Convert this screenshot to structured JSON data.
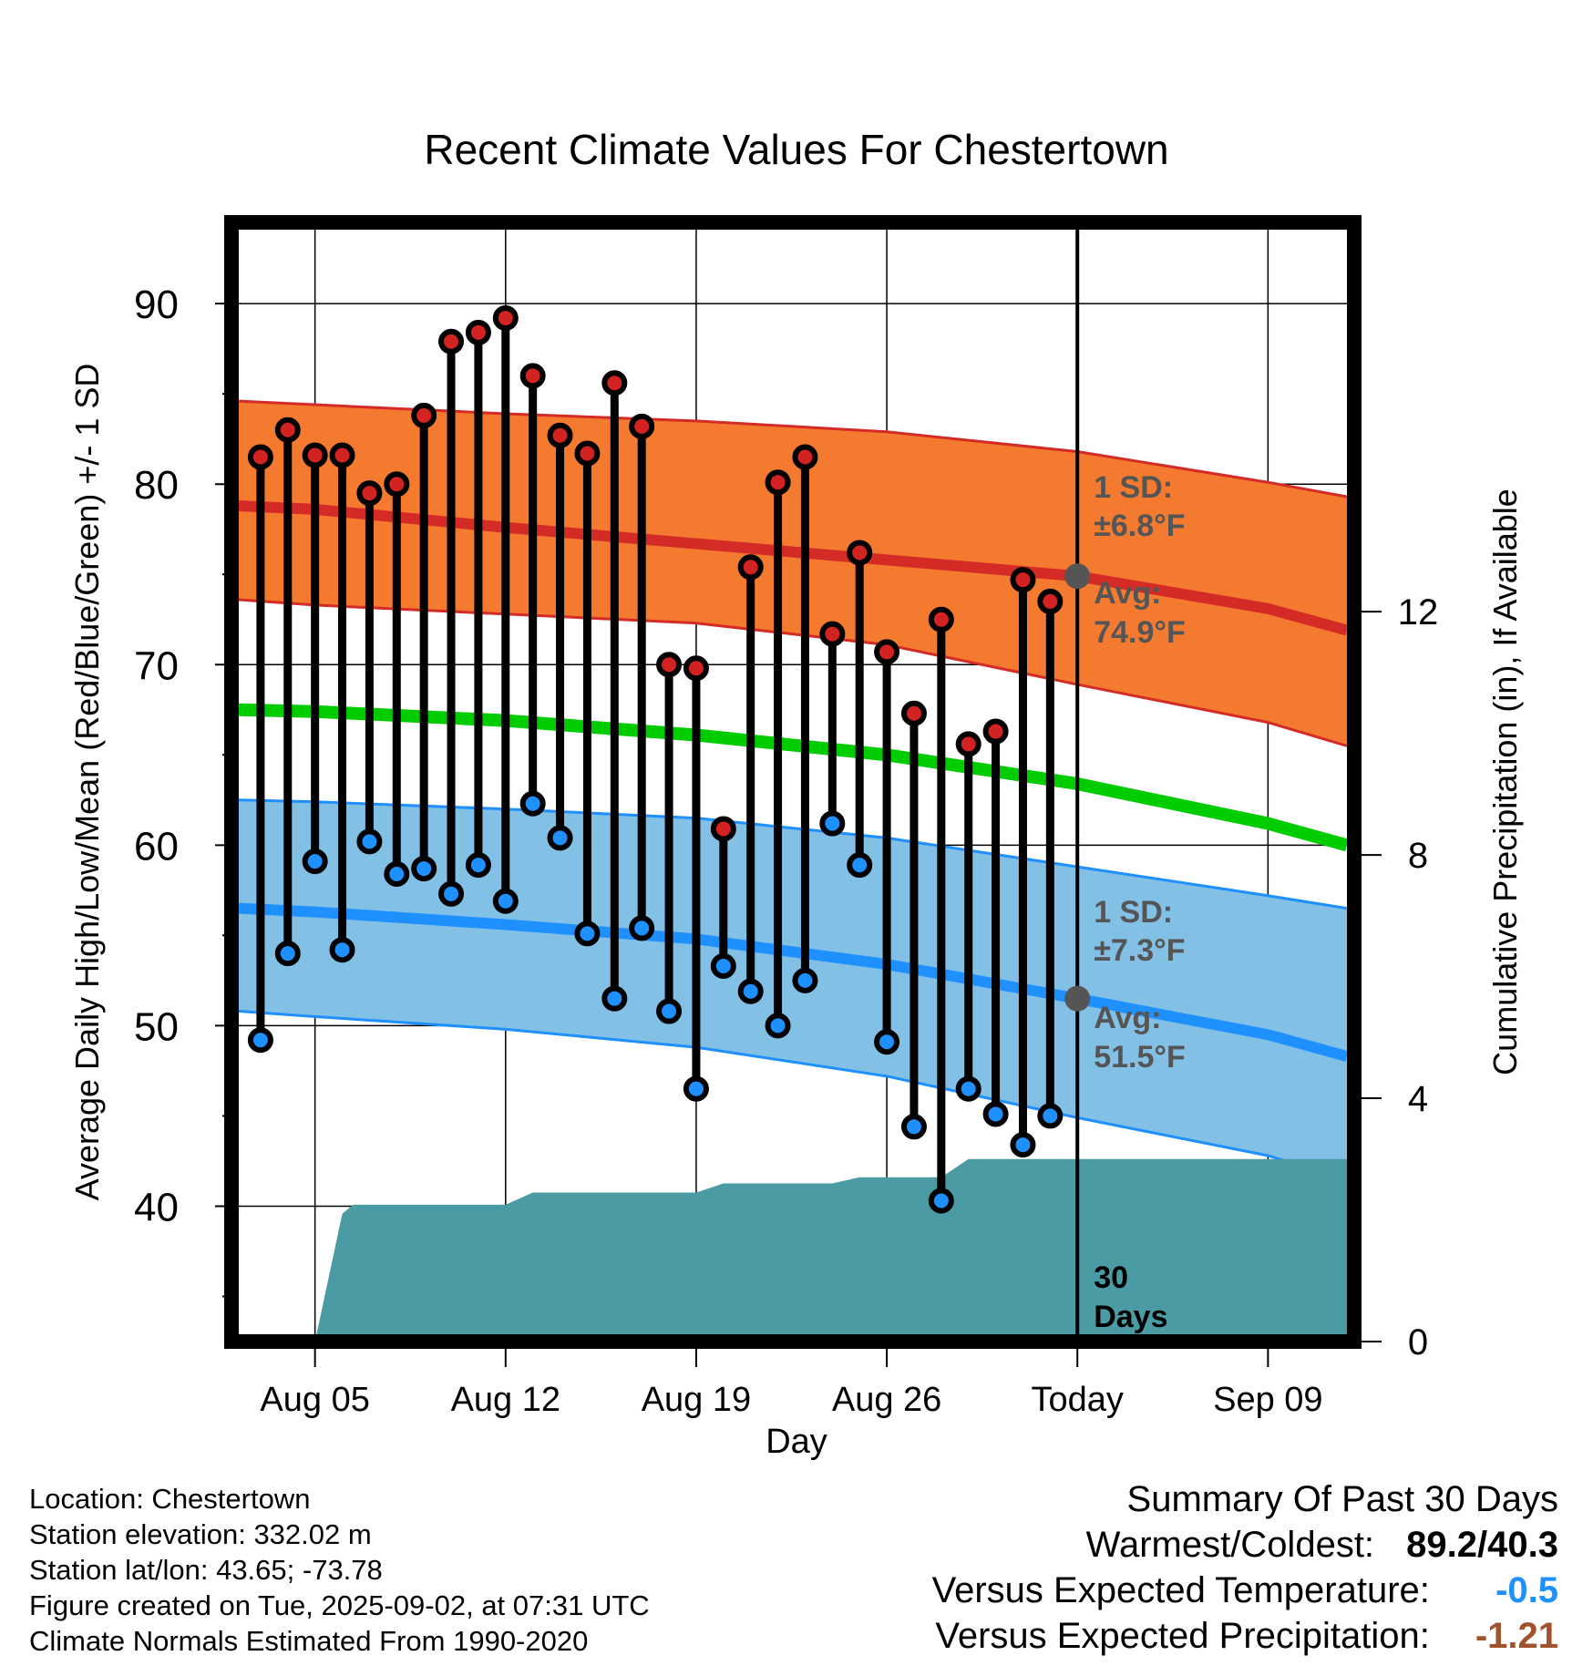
{
  "chart_data": {
    "type": "line",
    "title": "Recent Climate Values For Chestertown",
    "xlabel": "Day",
    "ylabel": "Average Daily High/Low/Mean (Red/Blue/Green) +/- 1 SD",
    "y2label": "Cumulative Precipitation (in), If Available",
    "ylim": [
      32.5,
      94.5
    ],
    "y2lim": [
      0,
      18.4
    ],
    "yticks": [
      40,
      50,
      60,
      70,
      80,
      90
    ],
    "y2ticks": [
      0,
      4,
      8,
      12
    ],
    "xticks": [
      {
        "day": 5,
        "label": "Aug 05"
      },
      {
        "day": 12,
        "label": "Aug 12"
      },
      {
        "day": 19,
        "label": "Aug 19"
      },
      {
        "day": 26,
        "label": "Aug 26"
      },
      {
        "day": 33,
        "label": "Today"
      },
      {
        "day": 40,
        "label": "Sep 09"
      }
    ],
    "xlim": [
      2.2,
      42.9
    ],
    "grid": true,
    "today_day": 33,
    "daily": {
      "day": [
        3,
        4,
        5,
        6,
        7,
        8,
        9,
        10,
        11,
        12,
        13,
        14,
        15,
        16,
        17,
        18,
        19,
        20,
        21,
        22,
        23,
        24,
        25,
        26,
        27,
        28,
        29,
        30,
        31,
        32
      ],
      "high": [
        81.5,
        83.0,
        81.6,
        81.6,
        79.5,
        80.0,
        83.8,
        87.9,
        88.4,
        89.2,
        86.0,
        82.7,
        81.7,
        85.6,
        83.2,
        70.0,
        69.8,
        60.9,
        75.4,
        80.1,
        81.5,
        71.7,
        76.2,
        70.7,
        67.3,
        72.5,
        65.6,
        66.3,
        74.7,
        73.5
      ],
      "low": [
        49.2,
        54.0,
        59.1,
        54.2,
        60.2,
        58.4,
        58.7,
        57.3,
        58.9,
        56.9,
        62.3,
        60.4,
        55.1,
        51.5,
        55.4,
        50.8,
        46.5,
        53.3,
        51.9,
        50.0,
        52.5,
        61.2,
        58.9,
        49.1,
        44.4,
        40.3,
        46.5,
        45.1,
        43.4,
        45.0
      ]
    },
    "normals": {
      "day": [
        2.2,
        5,
        12,
        19,
        26,
        33,
        40,
        42.9
      ],
      "avg_high": [
        78.8,
        78.6,
        77.6,
        76.7,
        75.8,
        74.9,
        73.1,
        71.9
      ],
      "high_upper": [
        84.6,
        84.4,
        83.9,
        83.5,
        82.9,
        81.8,
        80.1,
        79.3
      ],
      "high_lower": [
        73.6,
        73.3,
        72.8,
        72.3,
        71.1,
        68.9,
        66.8,
        65.5
      ],
      "avg_mean": [
        67.5,
        67.4,
        66.9,
        66.1,
        65.0,
        63.4,
        61.2,
        60.0
      ],
      "avg_low": [
        56.5,
        56.3,
        55.6,
        54.8,
        53.4,
        51.5,
        49.5,
        48.3
      ],
      "low_upper": [
        62.5,
        62.4,
        62.0,
        61.5,
        60.4,
        58.8,
        57.2,
        56.5
      ],
      "low_lower": [
        50.8,
        50.5,
        49.8,
        48.8,
        47.2,
        44.9,
        42.8,
        41.5
      ]
    },
    "precip": {
      "day": [
        5,
        6,
        6.4,
        7,
        12,
        13,
        19,
        20,
        24,
        25,
        28,
        29,
        42.9
      ],
      "value": [
        0,
        2.1,
        2.25,
        2.25,
        2.25,
        2.45,
        2.45,
        2.6,
        2.6,
        2.7,
        2.7,
        3.0,
        3.0
      ]
    },
    "annotations": {
      "high_sd": "1 SD:",
      "high_sd_value": "±6.8°F",
      "high_avg": "Avg:",
      "high_avg_value": "74.9°F",
      "low_sd": "1 SD:",
      "low_sd_value": "±7.3°F",
      "low_avg": "Avg:",
      "low_avg_value": "51.5°F",
      "days_count": "30",
      "days_label": "Days"
    },
    "colors": {
      "high_band": "#f47a30",
      "high_line": "#d42b26",
      "mean_line": "#00cc00",
      "low_band": "#83c0e6",
      "low_line": "#1e90ff",
      "precip": "#4a9ba3",
      "high_dot": "#d22222",
      "low_dot": "#1e90ff",
      "annotation": "#555555"
    }
  },
  "footer": {
    "location": "Location: Chestertown",
    "elevation": "Station elevation: 332.02 m",
    "latlon": "Station lat/lon: 43.65; -73.78",
    "created": "Figure created on Tue, 2025-09-02, at 07:31 UTC",
    "normals": "Climate Normals Estimated From 1990-2020"
  },
  "summary": {
    "title": "Summary Of Past 30 Days",
    "warmest_label": "Warmest/Coldest:",
    "warmest_value": "89.2/40.3",
    "temp_label": "Versus Expected Temperature:",
    "temp_value": "-0.5",
    "temp_color": "#1e90ff",
    "precip_label": "Versus Expected Precipitation:",
    "precip_value": "-1.21",
    "precip_color": "#a0522d"
  }
}
